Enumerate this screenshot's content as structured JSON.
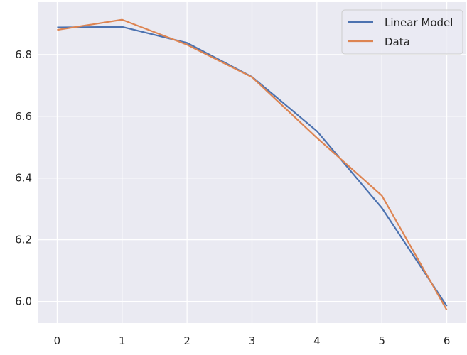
{
  "chart_data": {
    "type": "line",
    "title": "",
    "xlabel": "",
    "ylabel": "",
    "x": [
      0,
      1,
      2,
      3,
      4,
      5,
      6
    ],
    "xlim": [
      -0.3,
      6.3
    ],
    "ylim": [
      5.93,
      6.97
    ],
    "xticks": [
      0,
      1,
      2,
      3,
      4,
      5,
      6
    ],
    "yticks": [
      6.0,
      6.2,
      6.4,
      6.6,
      6.8
    ],
    "ytick_labels": [
      "6.0",
      "6.2",
      "6.4",
      "6.6",
      "6.8"
    ],
    "xtick_labels": [
      "0",
      "1",
      "2",
      "3",
      "4",
      "5",
      "6"
    ],
    "grid": true,
    "legend_position": "top-right",
    "background": "#eaeaf2",
    "series": [
      {
        "name": "Linear Model",
        "color": "#4c72b0",
        "values": [
          6.888,
          6.89,
          6.838,
          6.728,
          6.552,
          6.303,
          5.985
        ]
      },
      {
        "name": "Data",
        "color": "#dd8452",
        "values": [
          6.88,
          6.913,
          6.832,
          6.727,
          6.53,
          6.343,
          5.972
        ]
      }
    ]
  }
}
